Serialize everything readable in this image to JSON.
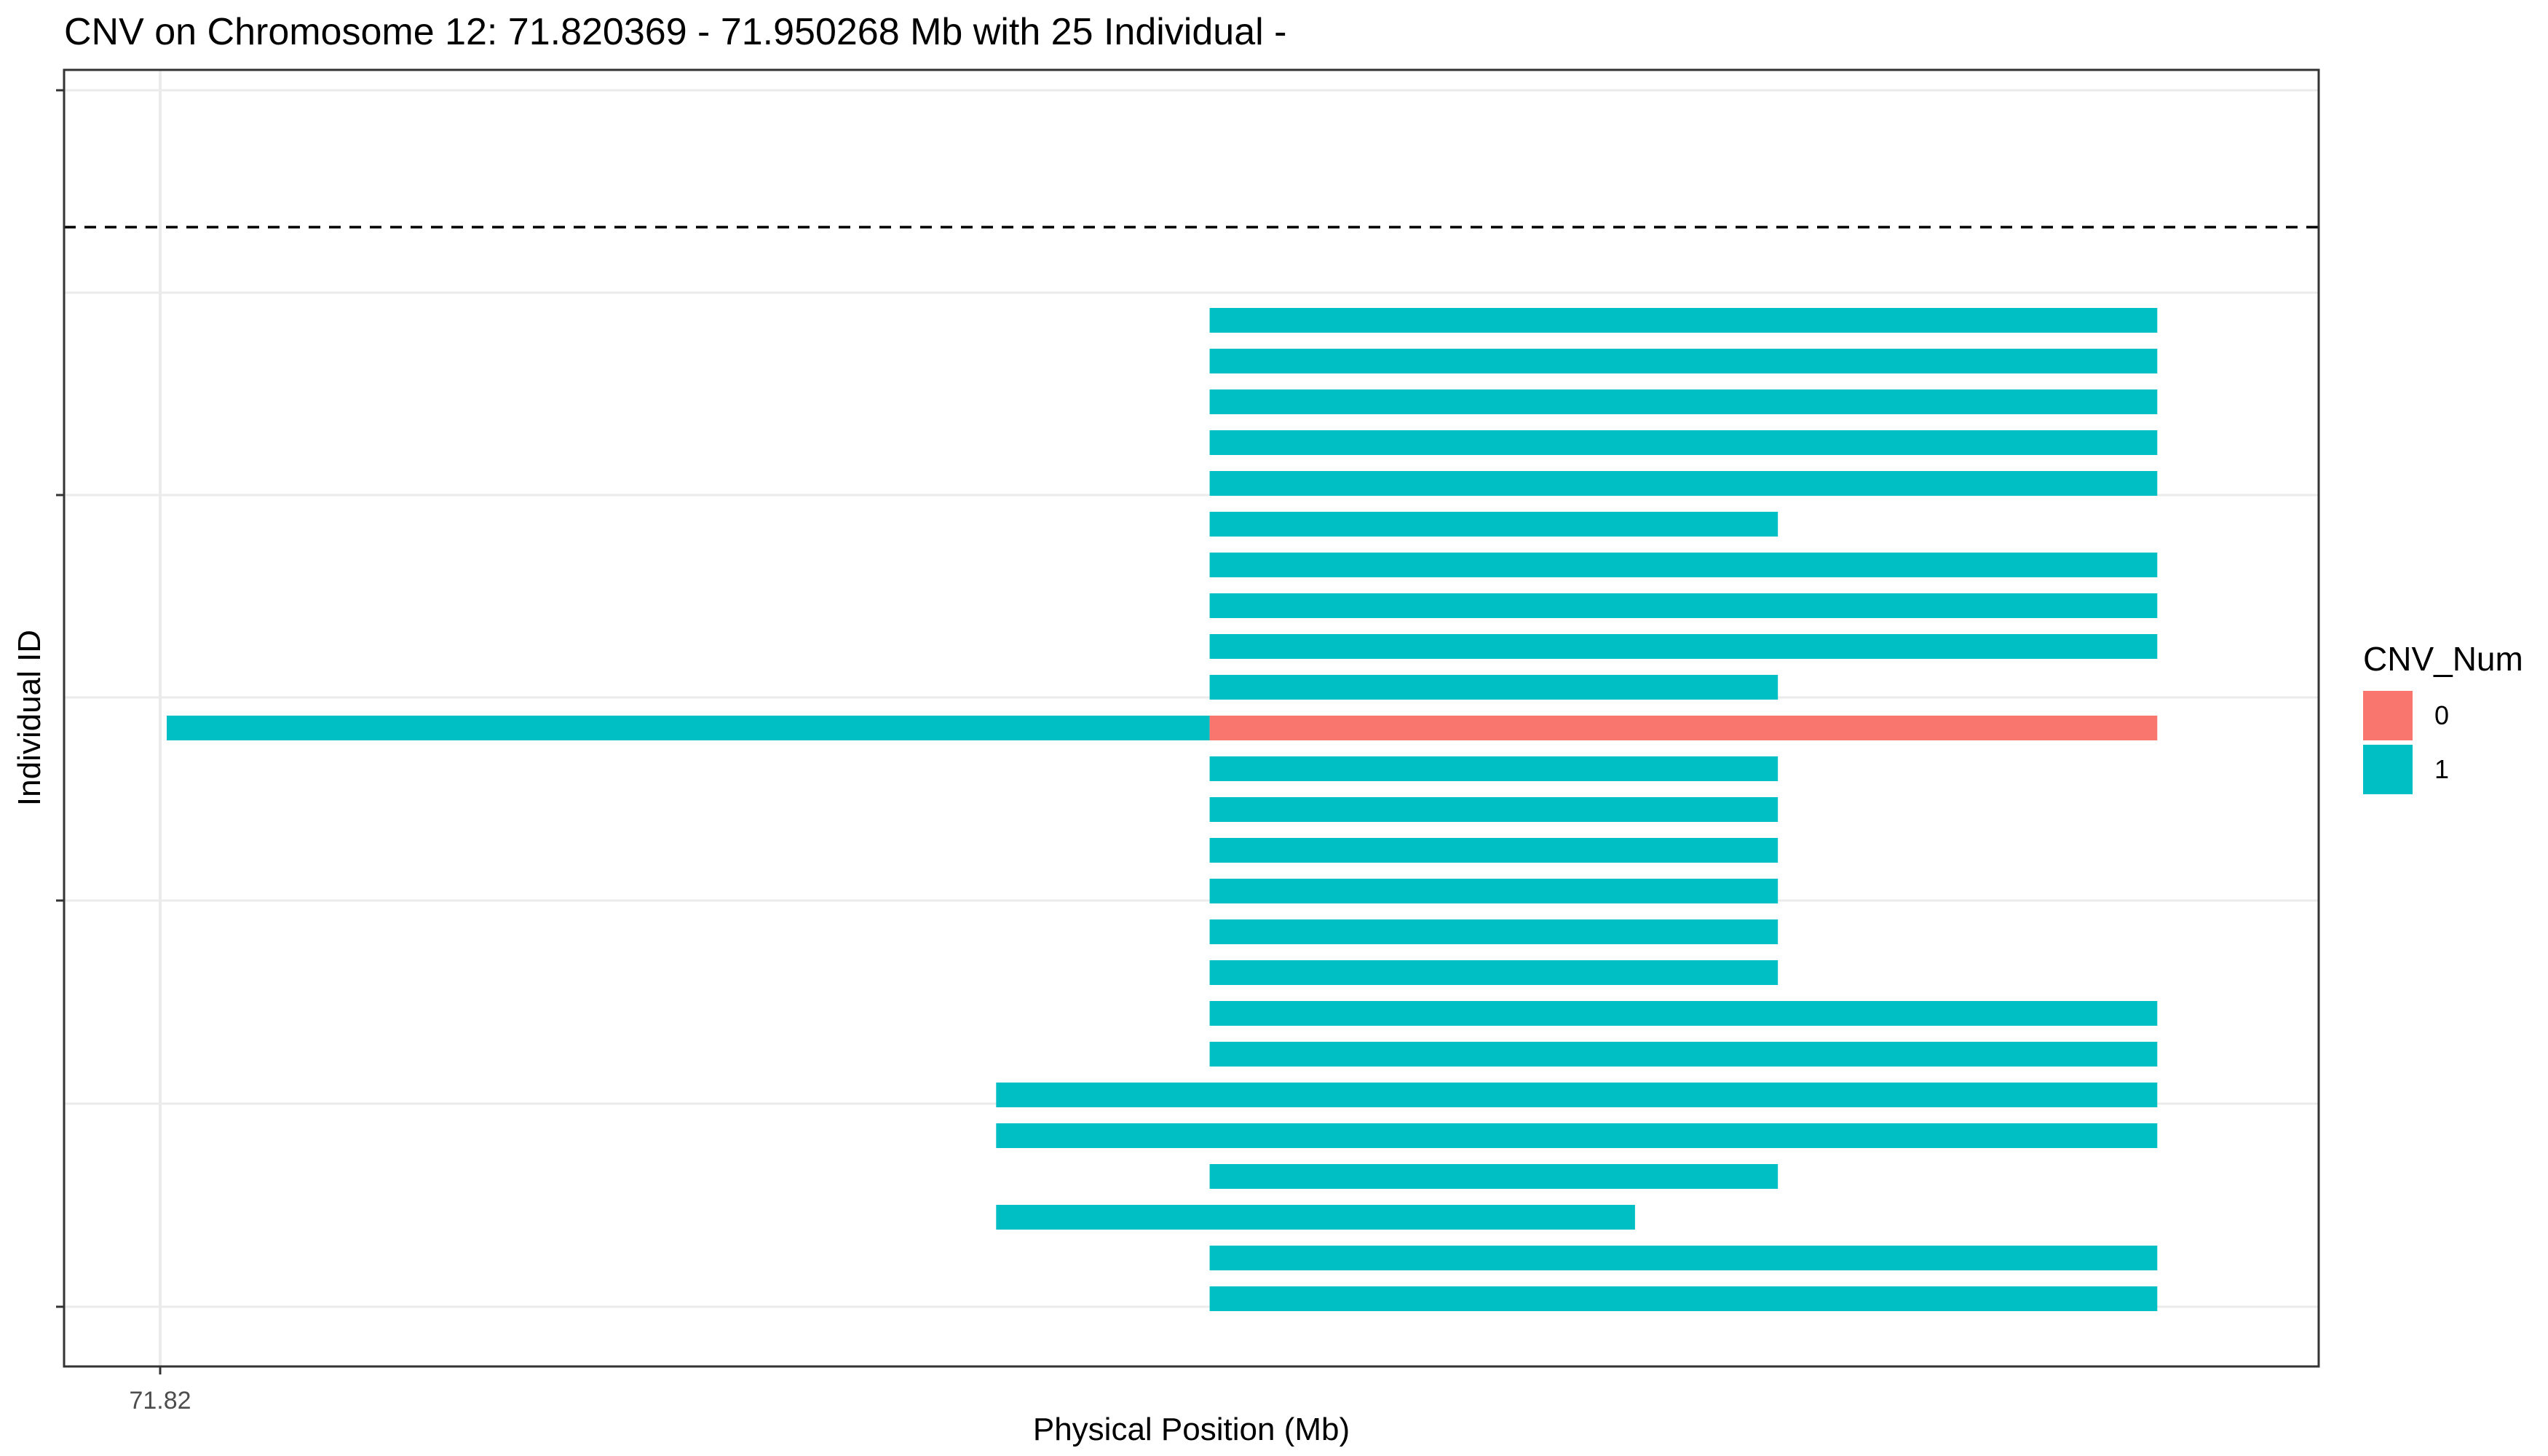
{
  "chart_data": {
    "type": "bar",
    "orientation": "horizontal-segments",
    "title": "CNV on Chromosome 12: 71.820369 - 71.950268 Mb with 25 Individual -",
    "xlabel": "Physical Position (Mb)",
    "ylabel": "Individual ID",
    "x_ticks": [
      71.82
    ],
    "xlim": [
      71.817,
      71.95
    ],
    "grid": true,
    "reference_line": {
      "style": "dashed"
    },
    "legend": {
      "title": "CNV_Num",
      "placement": "right",
      "entries": [
        {
          "label": "0",
          "color": "#F8766D"
        },
        {
          "label": "1",
          "color": "#00BFC4"
        }
      ]
    },
    "segments": [
      {
        "row": 1,
        "start": 71.8839,
        "end": 71.9416,
        "cnv": "1"
      },
      {
        "row": 2,
        "start": 71.8839,
        "end": 71.9416,
        "cnv": "1"
      },
      {
        "row": 3,
        "start": 71.8839,
        "end": 71.9416,
        "cnv": "1"
      },
      {
        "row": 4,
        "start": 71.8839,
        "end": 71.9416,
        "cnv": "1"
      },
      {
        "row": 5,
        "start": 71.8839,
        "end": 71.9416,
        "cnv": "1"
      },
      {
        "row": 6,
        "start": 71.8839,
        "end": 71.9185,
        "cnv": "1"
      },
      {
        "row": 7,
        "start": 71.8839,
        "end": 71.9416,
        "cnv": "1"
      },
      {
        "row": 8,
        "start": 71.8839,
        "end": 71.9416,
        "cnv": "1"
      },
      {
        "row": 9,
        "start": 71.8839,
        "end": 71.9416,
        "cnv": "1"
      },
      {
        "row": 10,
        "start": 71.8839,
        "end": 71.9185,
        "cnv": "1"
      },
      {
        "row": 11,
        "start": 71.8204,
        "end": 71.8839,
        "cnv": "1"
      },
      {
        "row": 11,
        "start": 71.8839,
        "end": 71.9416,
        "cnv": "0"
      },
      {
        "row": 12,
        "start": 71.8839,
        "end": 71.9185,
        "cnv": "1"
      },
      {
        "row": 13,
        "start": 71.8839,
        "end": 71.9185,
        "cnv": "1"
      },
      {
        "row": 14,
        "start": 71.8839,
        "end": 71.9185,
        "cnv": "1"
      },
      {
        "row": 15,
        "start": 71.8839,
        "end": 71.9185,
        "cnv": "1"
      },
      {
        "row": 16,
        "start": 71.8839,
        "end": 71.9185,
        "cnv": "1"
      },
      {
        "row": 17,
        "start": 71.8839,
        "end": 71.9185,
        "cnv": "1"
      },
      {
        "row": 18,
        "start": 71.8839,
        "end": 71.9416,
        "cnv": "1"
      },
      {
        "row": 19,
        "start": 71.8839,
        "end": 71.9416,
        "cnv": "1"
      },
      {
        "row": 20,
        "start": 71.8709,
        "end": 71.9416,
        "cnv": "1"
      },
      {
        "row": 21,
        "start": 71.8709,
        "end": 71.9416,
        "cnv": "1"
      },
      {
        "row": 22,
        "start": 71.8839,
        "end": 71.9185,
        "cnv": "1"
      },
      {
        "row": 23,
        "start": 71.8709,
        "end": 71.9098,
        "cnv": "1"
      },
      {
        "row": 24,
        "start": 71.8839,
        "end": 71.9416,
        "cnv": "1"
      },
      {
        "row": 25,
        "start": 71.8839,
        "end": 71.9416,
        "cnv": "1"
      }
    ]
  }
}
